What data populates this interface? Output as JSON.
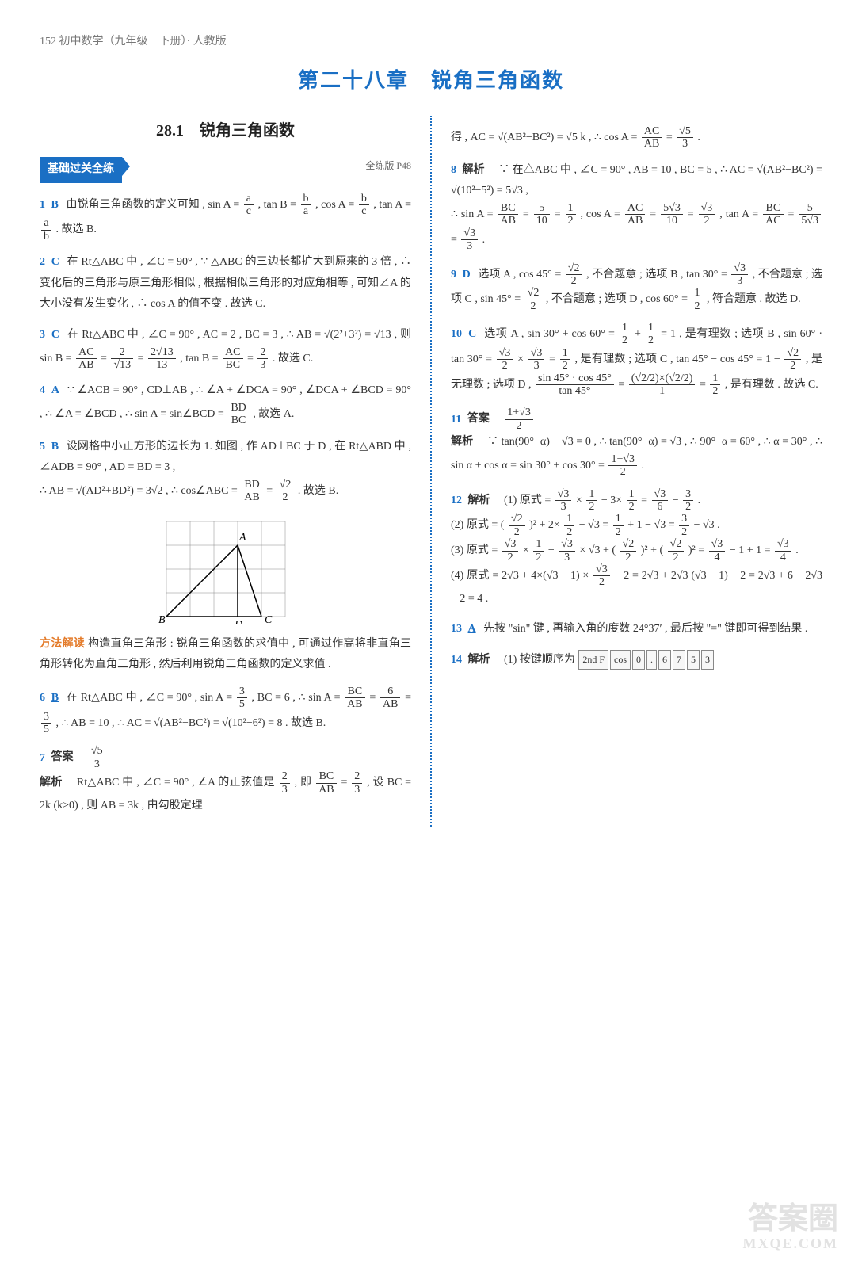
{
  "header": "152 初中数学（九年级　下册）· 人教版",
  "chapter": "第二十八章　锐角三角函数",
  "section": "28.1　锐角三角函数",
  "tag": "基础过关全练",
  "pageref": "全练版 P48",
  "method_label": "方法解读",
  "left": {
    "q1": {
      "num": "1",
      "ans": "B",
      "text_a": "由锐角三角函数的定义可知 , sin A = ",
      "frac1": {
        "n": "a",
        "d": "c"
      },
      "text_b": " , tan B = ",
      "frac2": {
        "n": "b",
        "d": "a"
      },
      "text_c": " , cos A = ",
      "frac3": {
        "n": "b",
        "d": "c"
      },
      "text_d": " , tan A = ",
      "frac4": {
        "n": "a",
        "d": "b"
      },
      "text_e": " . 故选 B."
    },
    "q2": {
      "num": "2",
      "ans": "C",
      "text": "在 Rt△ABC 中 , ∠C = 90° , ∵ △ABC 的三边长都扩大到原来的 3 倍 , ∴ 变化后的三角形与原三角形相似 , 根据相似三角形的对应角相等 , 可知∠A 的大小没有发生变化 , ∴ cos A 的值不变 . 故选 C."
    },
    "q3": {
      "num": "3",
      "ans": "C",
      "text_a": "在 Rt△ABC 中 , ∠C = 90° , AC = 2 , BC = 3 , ∴ AB = ",
      "expr1": "√(2²+3²) = √13",
      "text_b": " , 则 sin B = ",
      "frac1": {
        "n": "AC",
        "d": "AB"
      },
      "text_c": " = ",
      "frac2": {
        "n": "2",
        "d": "√13"
      },
      "text_d": " = ",
      "frac3": {
        "n": "2√13",
        "d": "13"
      },
      "text_e": " , tan B = ",
      "frac4": {
        "n": "AC",
        "d": "BC"
      },
      "text_f": " = ",
      "frac5": {
        "n": "2",
        "d": "3"
      },
      "text_g": " . 故选 C."
    },
    "q4": {
      "num": "4",
      "ans": "A",
      "text_a": "∵ ∠ACB = 90° , CD⊥AB , ∴ ∠A + ∠DCA = 90° , ∠DCA + ∠BCD = 90° , ∴ ∠A = ∠BCD , ∴ sin A = sin∠BCD = ",
      "frac1": {
        "n": "BD",
        "d": "BC"
      },
      "text_b": " , 故选 A."
    },
    "q5": {
      "num": "5",
      "ans": "B",
      "text_a": "设网格中小正方形的边长为 1. 如图 , 作 AD⊥BC 于 D , 在 Rt△ABD 中 , ∠ADB = 90° , AD = BD = 3 ,",
      "text_b": "∴ AB = √(AD²+BD²) = 3√2 , ∴ cos∠ABC = ",
      "frac1": {
        "n": "BD",
        "d": "AB"
      },
      "text_c": " = ",
      "frac2": {
        "n": "√2",
        "d": "2"
      },
      "text_d": " . 故选 B."
    },
    "method": "构造直角三角形 : 锐角三角函数的求值中 , 可通过作高将非直角三角形转化为直角三角形 , 然后利用锐角三角函数的定义求值 .",
    "q6": {
      "num": "6",
      "ans": "B",
      "text_a": "在 Rt△ABC 中 , ∠C = 90° , sin A = ",
      "frac1": {
        "n": "3",
        "d": "5"
      },
      "text_b": " , BC = 6 , ∴ sin A = ",
      "frac2": {
        "n": "BC",
        "d": "AB"
      },
      "text_c": " = ",
      "frac3": {
        "n": "6",
        "d": "AB"
      },
      "text_d": " = ",
      "frac4": {
        "n": "3",
        "d": "5"
      },
      "text_e": " , ∴ AB = 10 , ∴ AC = √(AB²−BC²) = √(10²−6²) = 8 . 故选 B."
    },
    "q7": {
      "num": "7",
      "ans_label": "答案",
      "ans_frac": {
        "n": "√5",
        "d": "3"
      },
      "exp_label": "解析",
      "text_a": "Rt△ABC 中 , ∠C = 90° , ∠A 的正弦值是 ",
      "frac1": {
        "n": "2",
        "d": "3"
      },
      "text_b": " , 即 ",
      "frac2": {
        "n": "BC",
        "d": "AB"
      },
      "text_c": " = ",
      "frac3": {
        "n": "2",
        "d": "3"
      },
      "text_d": " , 设 BC = 2k (k>0) , 则 AB = 3k , 由勾股定理"
    }
  },
  "right": {
    "q7cont": {
      "text_a": "得 , AC = √(AB²−BC²) = √5 k , ∴ cos A = ",
      "frac1": {
        "n": "AC",
        "d": "AB"
      },
      "text_b": " = ",
      "frac2": {
        "n": "√5",
        "d": "3"
      },
      "text_c": " ."
    },
    "q8": {
      "num": "8",
      "ans": "解析",
      "text_a": "∵ 在△ABC 中 , ∠C = 90° , AB = 10 , BC = 5 , ∴ AC = √(AB²−BC²) = √(10²−5²) = 5√3 ,",
      "text_b": "∴ sin A = ",
      "frac1": {
        "n": "BC",
        "d": "AB"
      },
      "eq1": " = ",
      "frac2": {
        "n": "5",
        "d": "10"
      },
      "eq2": " = ",
      "frac3": {
        "n": "1",
        "d": "2"
      },
      "text_c": " , cos A = ",
      "frac4": {
        "n": "AC",
        "d": "AB"
      },
      "eq3": " = ",
      "frac5": {
        "n": "5√3",
        "d": "10"
      },
      "eq4": " = ",
      "frac6": {
        "n": "√3",
        "d": "2"
      },
      "text_d": " , tan A = ",
      "frac7": {
        "n": "BC",
        "d": "AC"
      },
      "eq5": " = ",
      "frac8": {
        "n": "5",
        "d": "5√3"
      },
      "eq6": " = ",
      "frac9": {
        "n": "√3",
        "d": "3"
      },
      "text_e": " ."
    },
    "q9": {
      "num": "9",
      "ans": "D",
      "text_a": "选项 A , cos 45° = ",
      "frac1": {
        "n": "√2",
        "d": "2"
      },
      "text_b": " , 不合题意 ; 选项 B , tan 30° = ",
      "frac2": {
        "n": "√3",
        "d": "3"
      },
      "text_c": " , 不合题意 ; 选项 C , sin 45° = ",
      "frac3": {
        "n": "√2",
        "d": "2"
      },
      "text_d": " , 不合题意 ; 选项 D , cos 60° = ",
      "frac4": {
        "n": "1",
        "d": "2"
      },
      "text_e": " , 符合题意 . 故选 D."
    },
    "q10": {
      "num": "10",
      "ans": "C",
      "text_a": "选项 A , sin 30° + cos 60° = ",
      "frac1": {
        "n": "1",
        "d": "2"
      },
      "plus": " + ",
      "frac2": {
        "n": "1",
        "d": "2"
      },
      "text_b": " = 1 , 是有理数 ; 选项 B , sin 60° · tan 30° = ",
      "frac3": {
        "n": "√3",
        "d": "2"
      },
      "times": " × ",
      "frac4": {
        "n": "√3",
        "d": "3"
      },
      "text_c": " = ",
      "frac5": {
        "n": "1",
        "d": "2"
      },
      "text_d": " , 是有理数 ; 选项 C , tan 45° − cos 45° = 1 − ",
      "frac6": {
        "n": "√2",
        "d": "2"
      },
      "text_e": " , 是无理数 ; 选项 D , ",
      "bigfrac": {
        "n": "sin 45° · cos 45°",
        "d": "tan 45°"
      },
      "text_f": " = ",
      "bigfrac2": {
        "n": "(√2/2)×(√2/2)",
        "d": "1"
      },
      "text_g": " = ",
      "frac7": {
        "n": "1",
        "d": "2"
      },
      "text_h": " , 是有理数 . 故选 C."
    },
    "q11": {
      "num": "11",
      "ans_label": "答案",
      "ans_frac": {
        "n": "1+√3",
        "d": "2"
      },
      "exp_label": "解析",
      "text_a": "∵ tan(90°−α) − √3 = 0 , ∴ tan(90°−α) = √3 , ∴ 90°−α = 60° , ∴ α = 30° , ∴ sin α + cos α = sin 30° + cos 30° = ",
      "frac1": {
        "n": "1+√3",
        "d": "2"
      },
      "text_b": " ."
    },
    "q12": {
      "num": "12",
      "ans": "解析",
      "p1_a": "(1) 原式 = ",
      "f11": {
        "n": "√3",
        "d": "3"
      },
      "p1_b": " × ",
      "f12": {
        "n": "1",
        "d": "2"
      },
      "p1_c": " − 3× ",
      "f13": {
        "n": "1",
        "d": "2"
      },
      "p1_d": " = ",
      "f14": {
        "n": "√3",
        "d": "6"
      },
      "p1_e": " − ",
      "f15": {
        "n": "3",
        "d": "2"
      },
      "p1_f": " .",
      "p2_a": "(2) 原式 = (",
      "f21": {
        "n": "√2",
        "d": "2"
      },
      "p2_b": ")² + 2×",
      "f22": {
        "n": "1",
        "d": "2"
      },
      "p2_c": " − √3 = ",
      "f23": {
        "n": "1",
        "d": "2"
      },
      "p2_d": " + 1 − √3 = ",
      "f24": {
        "n": "3",
        "d": "2"
      },
      "p2_e": " − √3 .",
      "p3_a": "(3) 原式 = ",
      "f31": {
        "n": "√3",
        "d": "2"
      },
      "p3_b": " × ",
      "f32": {
        "n": "1",
        "d": "2"
      },
      "p3_c": " − ",
      "f33": {
        "n": "√3",
        "d": "3"
      },
      "p3_d": " × √3 + (",
      "f34": {
        "n": "√2",
        "d": "2"
      },
      "p3_e": ")² + (",
      "f35": {
        "n": "√2",
        "d": "2"
      },
      "p3_f": ")² = ",
      "f36": {
        "n": "√3",
        "d": "4"
      },
      "p3_g": " − 1 + 1 = ",
      "f37": {
        "n": "√3",
        "d": "4"
      },
      "p3_h": " .",
      "p4_a": "(4) 原式 = 2√3 + 4×(√3 − 1) × ",
      "f41": {
        "n": "√3",
        "d": "2"
      },
      "p4_b": " − 2 = 2√3 + 2√3 (√3 − 1) − 2 = 2√3 + 6 − 2√3 − 2 = 4 ."
    },
    "q13": {
      "num": "13",
      "ans": "A",
      "text": "先按 \"sin\" 键 , 再输入角的度数 24°37′ , 最后按 \"=\" 键即可得到结果 ."
    },
    "q14": {
      "num": "14",
      "ans": "解析",
      "text": "(1) 按键顺序为 ",
      "keys": [
        "2nd F",
        "cos",
        "0",
        ".",
        "6",
        "7",
        "5",
        "3"
      ]
    }
  },
  "watermark": {
    "big": "答案圈",
    "small": "MXQE.COM"
  }
}
